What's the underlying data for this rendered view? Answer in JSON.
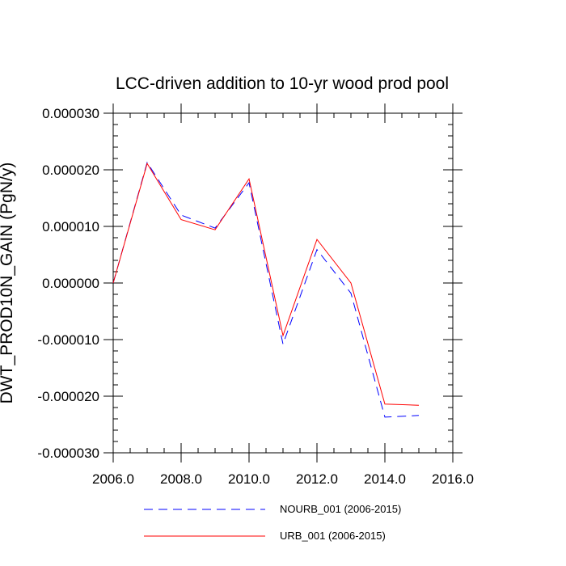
{
  "chart_data": {
    "type": "line",
    "title": "LCC-driven addition to 10-yr wood prod pool",
    "ylabel": "DWT_PROD10N_GAIN  (PgN/y)",
    "xlabel": "",
    "xlim": [
      2006,
      2016
    ],
    "ylim": [
      -3e-05,
      3e-05
    ],
    "x_ticks": [
      2006,
      2008,
      2010,
      2012,
      2014,
      2016
    ],
    "x_tick_labels": [
      "2006.0",
      "2008.0",
      "2010.0",
      "2012.0",
      "2014.0",
      "2016.0"
    ],
    "y_ticks": [
      3e-05,
      2e-05,
      1e-05,
      0,
      -1e-05,
      -2e-05,
      -3e-05
    ],
    "y_tick_labels": [
      "0.000030",
      "0.000020",
      "0.000010",
      "0.000000",
      "-0.000010",
      "-0.000020",
      "-0.000030"
    ],
    "x": [
      2006,
      2007,
      2008,
      2009,
      2010,
      2011,
      2012,
      2013,
      2014,
      2015
    ],
    "series": [
      {
        "name": "NOURB_001 (2006-2015)",
        "color": "#0000ff",
        "dash": "dashed",
        "values": [
          0.0,
          2.13e-05,
          1.2e-05,
          9.7e-06,
          1.77e-05,
          -1.08e-05,
          5.9e-06,
          -1.8e-06,
          -2.37e-05,
          -2.34e-05
        ]
      },
      {
        "name": "URB_001 (2006-2015)",
        "color": "#ff0000",
        "dash": "solid",
        "values": [
          0.0,
          2.11e-05,
          1.12e-05,
          9.4e-06,
          1.84e-05,
          -9.3e-06,
          7.7e-06,
          0.0,
          -2.14e-05,
          -2.16e-05
        ]
      }
    ],
    "grid": false,
    "legend_position": "bottom"
  }
}
